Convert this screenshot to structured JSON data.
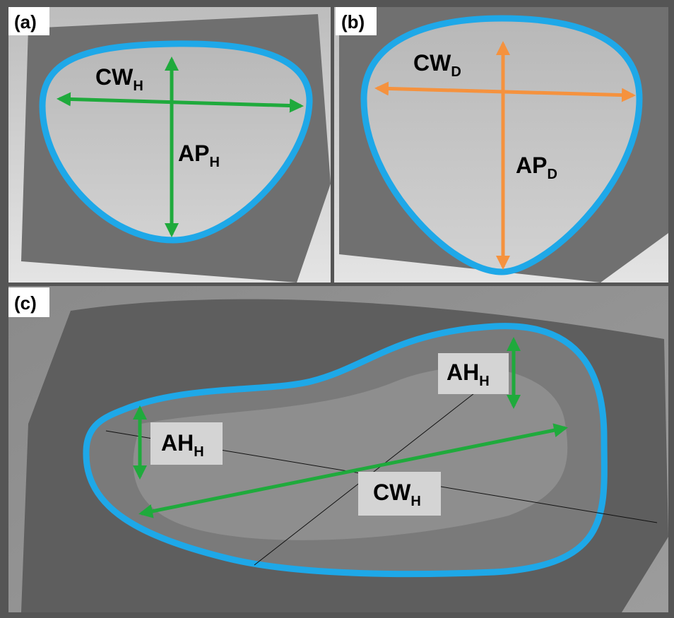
{
  "panels": [
    {
      "label": "(a)",
      "annotations": [
        {
          "main": "CW",
          "sub": "H"
        },
        {
          "main": "AP",
          "sub": "H"
        }
      ]
    },
    {
      "label": "(b)",
      "annotations": [
        {
          "main": "CW",
          "sub": "D"
        },
        {
          "main": "AP",
          "sub": "D"
        }
      ]
    },
    {
      "label": "(c)",
      "annotations": [
        {
          "main": "AH",
          "sub": "H"
        },
        {
          "main": "AH",
          "sub": "H"
        },
        {
          "main": "CW",
          "sub": "H"
        }
      ]
    }
  ]
}
